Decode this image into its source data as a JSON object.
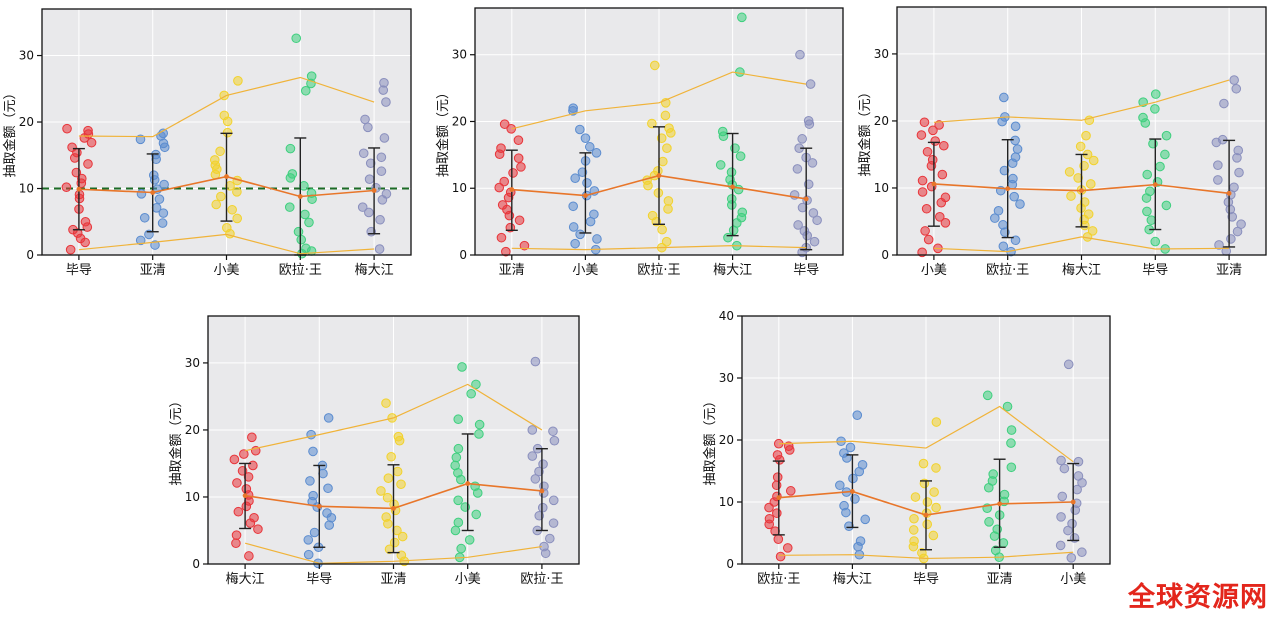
{
  "watermark": "全球资源网",
  "chart_data": [
    {
      "type": "scatter",
      "ylabel": "抽取金额（元）",
      "ylim": [
        0,
        37
      ],
      "yticks": [
        0,
        10,
        20,
        30
      ],
      "reference_line": 10,
      "grid": true,
      "categories": [
        "毕导",
        "亚清",
        "小美",
        "欧拉·王",
        "梅大江"
      ],
      "colors": [
        "#e8353a",
        "#5b8ccf",
        "#f2d22c",
        "#3ecf7e",
        "#8a8fbd"
      ],
      "mean": [
        9.9,
        9.4,
        11.8,
        8.8,
        9.7
      ],
      "sd_low": [
        3.8,
        3.5,
        5.1,
        0.0,
        3.2
      ],
      "sd_high": [
        16.0,
        15.2,
        18.3,
        17.6,
        16.1
      ],
      "max": [
        17.9,
        17.8,
        24.0,
        26.7,
        23.0
      ],
      "min": [
        0.8,
        1.9,
        3.1,
        0.2,
        0.9
      ],
      "points": [
        [
          0.8,
          1.9,
          2.5,
          3.3,
          3.8,
          4.2,
          5.0,
          6.9,
          8.5,
          9.1,
          10.2,
          10.8,
          11.5,
          12.4,
          13.7,
          14.6,
          15.4,
          16.2,
          16.9,
          17.6,
          18.2,
          18.7,
          19.0
        ],
        [
          1.5,
          2.2,
          3.1,
          4.8,
          5.6,
          6.3,
          7.1,
          8.4,
          9.2,
          9.9,
          10.6,
          11.3,
          12.0,
          14.4,
          15.1,
          16.2,
          16.8,
          17.4,
          17.9,
          18.3
        ],
        [
          3.2,
          4.1,
          5.5,
          6.8,
          7.6,
          8.8,
          9.5,
          10.4,
          11.2,
          12.1,
          12.9,
          13.5,
          14.3,
          15.6,
          18.4,
          20.1,
          21.0,
          24.0,
          26.2
        ],
        [
          0.2,
          0.6,
          1.0,
          2.3,
          3.5,
          4.9,
          6.1,
          7.2,
          8.4,
          9.3,
          10.4,
          11.6,
          12.2,
          16.0,
          24.7,
          25.8,
          26.9,
          32.6
        ],
        [
          0.9,
          3.5,
          5.3,
          6.4,
          7.2,
          8.3,
          9.2,
          10.1,
          11.4,
          12.6,
          13.8,
          14.7,
          15.3,
          17.6,
          19.2,
          20.4,
          23.0,
          24.8,
          25.9
        ]
      ]
    },
    {
      "type": "scatter",
      "ylabel": "抽取金额（元）",
      "ylim": [
        0,
        37
      ],
      "yticks": [
        0,
        10,
        20,
        30
      ],
      "grid": true,
      "categories": [
        "亚清",
        "小美",
        "欧拉·王",
        "梅大江",
        "毕导"
      ],
      "colors": [
        "#e8353a",
        "#5b8ccf",
        "#f2d22c",
        "#3ecf7e",
        "#8a8fbd"
      ],
      "mean": [
        9.8,
        8.9,
        11.9,
        10.2,
        8.4
      ],
      "sd_low": [
        3.7,
        3.3,
        4.6,
        2.9,
        0.8
      ],
      "sd_high": [
        15.7,
        15.3,
        19.2,
        18.2,
        16.0
      ],
      "max": [
        18.9,
        21.6,
        22.8,
        27.4,
        25.6
      ],
      "min": [
        1.0,
        0.8,
        1.1,
        1.4,
        1.1
      ],
      "points": [
        [
          0.5,
          1.4,
          2.6,
          4.1,
          5.2,
          5.9,
          6.8,
          7.5,
          8.6,
          9.4,
          10.1,
          11.0,
          12.3,
          13.2,
          14.5,
          15.1,
          16.0,
          17.2,
          18.9,
          19.6
        ],
        [
          0.8,
          1.7,
          2.4,
          3.1,
          4.2,
          5.0,
          6.1,
          7.3,
          8.9,
          9.6,
          10.8,
          11.5,
          12.4,
          14.1,
          15.3,
          16.2,
          17.5,
          18.8,
          21.6,
          22.0
        ],
        [
          1.1,
          2.0,
          3.8,
          5.0,
          5.9,
          6.9,
          8.1,
          9.3,
          10.4,
          11.2,
          11.9,
          12.6,
          14.0,
          16.0,
          17.5,
          18.3,
          19.0,
          19.7,
          20.9,
          22.8,
          28.4
        ],
        [
          1.4,
          2.6,
          3.7,
          4.8,
          5.6,
          6.4,
          7.5,
          8.4,
          9.8,
          10.5,
          11.3,
          12.4,
          13.5,
          14.8,
          16.0,
          17.8,
          18.5,
          27.4,
          35.6
        ],
        [
          0.4,
          1.1,
          2.0,
          2.9,
          3.6,
          4.5,
          5.2,
          6.3,
          7.1,
          8.2,
          9.0,
          10.6,
          12.9,
          13.8,
          14.6,
          16.0,
          17.4,
          19.6,
          20.1,
          25.6,
          30.0
        ]
      ]
    },
    {
      "type": "scatter",
      "ylabel": "抽取金额（元）",
      "ylim": [
        0,
        37
      ],
      "yticks": [
        0,
        10,
        20,
        30
      ],
      "grid": true,
      "categories": [
        "小美",
        "欧拉·王",
        "梅大江",
        "毕导",
        "亚清"
      ],
      "colors": [
        "#e8353a",
        "#5b8ccf",
        "#f2d22c",
        "#3ecf7e",
        "#8a8fbd"
      ],
      "mean": [
        10.6,
        9.9,
        9.6,
        10.5,
        9.2
      ],
      "sd_low": [
        4.3,
        2.6,
        4.2,
        3.8,
        1.2
      ],
      "sd_high": [
        16.8,
        17.2,
        15.0,
        17.3,
        17.1
      ],
      "max": [
        19.8,
        20.6,
        20.1,
        22.8,
        26.1
      ],
      "min": [
        1.0,
        0.5,
        2.7,
        0.9,
        1.0
      ],
      "points": [
        [
          0.4,
          1.0,
          2.3,
          3.6,
          4.8,
          5.7,
          6.9,
          7.8,
          8.6,
          9.4,
          10.2,
          11.1,
          12.0,
          13.3,
          14.2,
          15.4,
          16.3,
          17.0,
          17.9,
          18.6,
          19.4,
          19.8
        ],
        [
          0.5,
          1.3,
          2.2,
          3.4,
          4.5,
          5.5,
          6.6,
          7.6,
          8.7,
          9.6,
          10.5,
          11.4,
          12.6,
          13.7,
          14.6,
          15.8,
          17.1,
          19.2,
          19.9,
          20.6,
          23.5
        ],
        [
          2.7,
          3.6,
          4.4,
          5.3,
          6.1,
          7.0,
          7.9,
          8.8,
          9.7,
          10.6,
          11.5,
          12.4,
          13.3,
          14.1,
          15.0,
          16.2,
          17.8,
          20.1
        ],
        [
          0.9,
          2.0,
          3.8,
          5.2,
          6.5,
          7.4,
          8.5,
          9.5,
          10.9,
          12.0,
          13.2,
          15.0,
          16.6,
          17.8,
          19.7,
          20.5,
          21.8,
          22.8,
          24.0
        ],
        [
          0.6,
          1.5,
          2.4,
          3.5,
          4.6,
          5.7,
          6.8,
          7.9,
          9.0,
          10.1,
          11.2,
          12.3,
          13.4,
          14.5,
          15.6,
          16.8,
          17.2,
          22.6,
          24.8,
          26.1
        ]
      ]
    },
    {
      "type": "scatter",
      "ylabel": "抽取金额（元）",
      "ylim": [
        0,
        37
      ],
      "yticks": [
        0,
        10,
        20,
        30
      ],
      "grid": true,
      "categories": [
        "梅大江",
        "毕导",
        "亚清",
        "小美",
        "欧拉·王"
      ],
      "colors": [
        "#e8353a",
        "#5b8ccf",
        "#f2d22c",
        "#3ecf7e",
        "#8a8fbd"
      ],
      "mean": [
        10.2,
        8.6,
        8.3,
        12.0,
        10.9
      ],
      "sd_low": [
        5.3,
        2.5,
        1.7,
        5.0,
        5.0
      ],
      "sd_high": [
        15.0,
        14.7,
        14.8,
        19.4,
        17.2
      ],
      "max": [
        16.9,
        19.3,
        21.8,
        26.8,
        20.0
      ],
      "min": [
        3.1,
        0.1,
        0.4,
        1.0,
        2.6
      ],
      "points": [
        [
          1.2,
          3.1,
          4.3,
          5.2,
          6.1,
          6.9,
          7.8,
          8.6,
          9.4,
          10.3,
          11.2,
          12.1,
          13.0,
          13.9,
          14.7,
          15.6,
          16.4,
          16.9,
          18.9
        ],
        [
          0.1,
          1.4,
          2.5,
          3.6,
          4.7,
          5.8,
          6.9,
          7.6,
          8.5,
          9.3,
          10.2,
          11.3,
          12.4,
          13.5,
          14.7,
          16.8,
          19.3,
          21.8
        ],
        [
          0.4,
          1.3,
          2.2,
          3.2,
          4.1,
          5.0,
          6.0,
          7.0,
          8.0,
          8.9,
          9.9,
          10.9,
          11.9,
          12.8,
          13.8,
          16.0,
          18.4,
          19.0,
          21.8,
          24.0
        ],
        [
          1.0,
          2.3,
          3.6,
          5.0,
          6.2,
          7.4,
          8.5,
          9.5,
          10.6,
          11.6,
          12.6,
          13.6,
          14.7,
          15.9,
          17.2,
          19.4,
          20.8,
          21.6,
          25.4,
          26.8,
          29.4
        ],
        [
          1.6,
          2.6,
          3.8,
          5.0,
          6.1,
          7.2,
          8.4,
          9.5,
          10.6,
          11.6,
          12.7,
          13.8,
          14.9,
          16.1,
          17.2,
          18.4,
          19.8,
          20.0,
          30.2
        ]
      ]
    },
    {
      "type": "scatter",
      "ylabel": "抽取金额（元）",
      "ylim": [
        0,
        40
      ],
      "yticks": [
        0,
        10,
        20,
        30,
        40
      ],
      "grid": true,
      "categories": [
        "欧拉·王",
        "梅大江",
        "毕导",
        "亚清",
        "小美"
      ],
      "colors": [
        "#e8353a",
        "#5b8ccf",
        "#f2d22c",
        "#3ecf7e",
        "#8a8fbd"
      ],
      "mean": [
        10.7,
        11.7,
        7.9,
        9.7,
        10.0
      ],
      "sd_low": [
        4.7,
        5.9,
        2.3,
        2.7,
        3.8
      ],
      "sd_high": [
        16.6,
        17.6,
        13.4,
        16.9,
        16.2
      ],
      "max": [
        19.4,
        19.8,
        18.7,
        25.4,
        16.5
      ],
      "min": [
        1.4,
        1.5,
        0.9,
        1.1,
        1.9
      ],
      "points": [
        [
          1.2,
          2.6,
          4.0,
          5.3,
          6.4,
          7.3,
          8.2,
          9.1,
          10.0,
          10.9,
          11.8,
          12.7,
          14.0,
          16.8,
          17.6,
          18.4,
          19.0,
          19.4
        ],
        [
          1.5,
          2.8,
          3.7,
          6.1,
          7.2,
          8.3,
          9.4,
          10.5,
          11.6,
          12.7,
          13.8,
          14.9,
          16.0,
          17.1,
          17.9,
          18.8,
          19.8,
          24.0
        ],
        [
          0.9,
          1.8,
          2.8,
          3.7,
          4.6,
          5.5,
          6.4,
          7.3,
          8.2,
          9.1,
          10.0,
          10.8,
          11.6,
          13.0,
          15.5,
          16.2,
          22.9
        ],
        [
          1.1,
          2.2,
          3.4,
          4.5,
          5.6,
          6.8,
          7.9,
          9.0,
          10.1,
          11.2,
          12.3,
          13.4,
          14.5,
          15.6,
          19.5,
          21.6,
          25.4,
          27.2
        ],
        [
          1.0,
          1.9,
          3.0,
          4.2,
          5.4,
          6.5,
          7.6,
          8.7,
          9.8,
          10.9,
          12.0,
          13.1,
          14.2,
          15.4,
          16.5,
          16.7,
          32.2
        ]
      ]
    }
  ]
}
